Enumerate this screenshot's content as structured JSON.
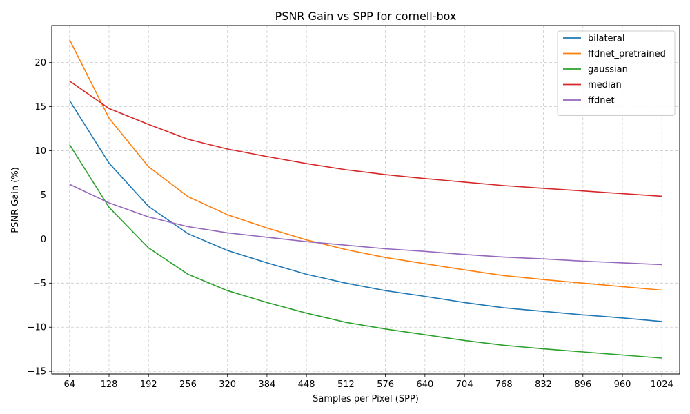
{
  "chart_data": {
    "type": "line",
    "title": "PSNR Gain vs SPP for cornell-box",
    "xlabel": "Samples per Pixel (SPP)",
    "ylabel": "PSNR Gain (%)",
    "x": [
      64,
      128,
      192,
      256,
      320,
      384,
      448,
      512,
      576,
      640,
      704,
      768,
      832,
      896,
      960,
      1024
    ],
    "x_ticks": [
      "64",
      "128",
      "192",
      "256",
      "320",
      "384",
      "448",
      "512",
      "576",
      "640",
      "704",
      "768",
      "832",
      "896",
      "960",
      "1024"
    ],
    "ylim": [
      -15.3,
      24.2
    ],
    "y_ticks": [
      -15,
      -10,
      -5,
      0,
      5,
      10,
      15,
      20
    ],
    "y_tick_labels": [
      "−15",
      "−10",
      "−5",
      "0",
      "5",
      "10",
      "15",
      "20"
    ],
    "grid": true,
    "legend_position": "top-right",
    "series": [
      {
        "name": "bilateral",
        "color": "#1f77b4",
        "values": [
          15.7,
          8.6,
          3.7,
          0.6,
          -1.3,
          -2.7,
          -4.0,
          -5.0,
          -5.85,
          -6.5,
          -7.2,
          -7.8,
          -8.2,
          -8.6,
          -8.95,
          -9.35
        ]
      },
      {
        "name": "ffdnet_pretrained",
        "color": "#ff7f0e",
        "values": [
          22.6,
          13.7,
          8.2,
          4.8,
          2.75,
          1.25,
          -0.1,
          -1.2,
          -2.1,
          -2.8,
          -3.5,
          -4.15,
          -4.6,
          -5.0,
          -5.4,
          -5.8
        ]
      },
      {
        "name": "gaussian",
        "color": "#2ca02c",
        "values": [
          10.7,
          3.6,
          -1.0,
          -4.0,
          -5.85,
          -7.2,
          -8.4,
          -9.45,
          -10.2,
          -10.85,
          -11.5,
          -12.05,
          -12.45,
          -12.8,
          -13.15,
          -13.5
        ]
      },
      {
        "name": "median",
        "color": "#d62728",
        "values": [
          17.9,
          14.8,
          13.0,
          11.3,
          10.2,
          9.35,
          8.55,
          7.85,
          7.3,
          6.85,
          6.45,
          6.05,
          5.75,
          5.45,
          5.15,
          4.85
        ]
      },
      {
        "name": "ffdnet",
        "color": "#9467bd",
        "values": [
          6.2,
          4.1,
          2.5,
          1.4,
          0.7,
          0.2,
          -0.3,
          -0.7,
          -1.1,
          -1.4,
          -1.75,
          -2.05,
          -2.25,
          -2.5,
          -2.7,
          -2.9
        ]
      }
    ]
  }
}
